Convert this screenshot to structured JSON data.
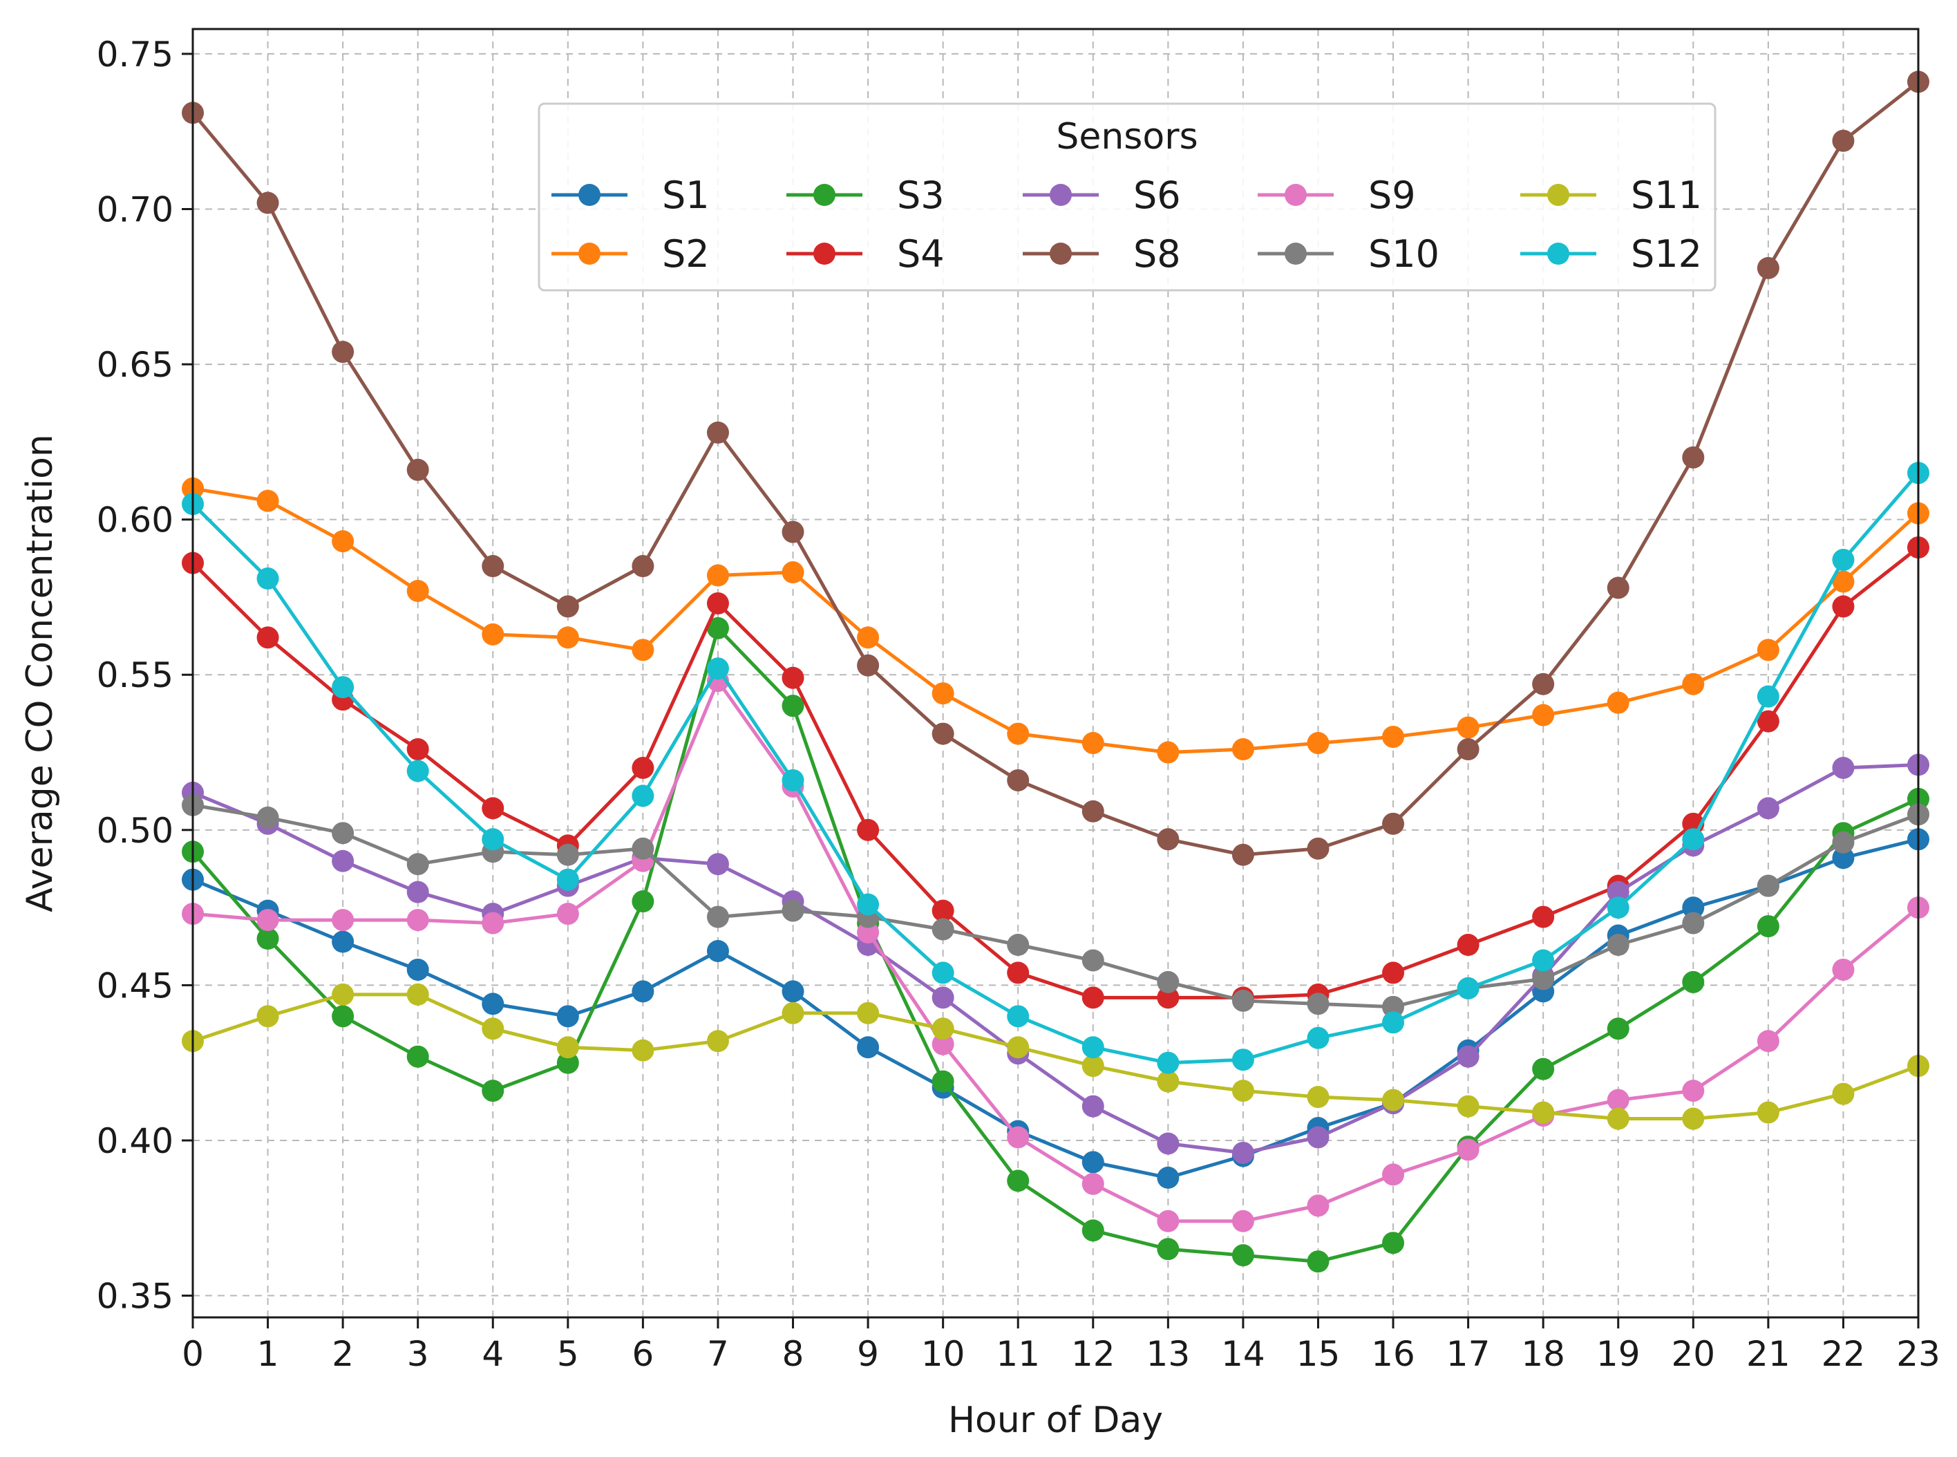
{
  "chart_data": {
    "type": "line",
    "title": "",
    "xlabel": "Hour of Day",
    "ylabel": "Average CO Concentration",
    "xlim": [
      0,
      23
    ],
    "ylim": [
      0.343,
      0.758
    ],
    "x": [
      0,
      1,
      2,
      3,
      4,
      5,
      6,
      7,
      8,
      9,
      10,
      11,
      12,
      13,
      14,
      15,
      16,
      17,
      18,
      19,
      20,
      21,
      22,
      23
    ],
    "x_tick_labels": [
      "0",
      "1",
      "2",
      "3",
      "4",
      "5",
      "6",
      "7",
      "8",
      "9",
      "10",
      "11",
      "12",
      "13",
      "14",
      "15",
      "16",
      "17",
      "18",
      "19",
      "20",
      "21",
      "22",
      "23"
    ],
    "y_ticks": [
      0.35,
      0.4,
      0.45,
      0.5,
      0.55,
      0.6,
      0.65,
      0.7,
      0.75
    ],
    "y_tick_labels": [
      "0.35",
      "0.40",
      "0.45",
      "0.50",
      "0.55",
      "0.60",
      "0.65",
      "0.70",
      "0.75"
    ],
    "grid": true,
    "legend": {
      "title": "Sensors",
      "placement": "top-center",
      "columns": 6
    },
    "series": [
      {
        "name": "S1",
        "color": "#1f77b4",
        "values": [
          0.484,
          0.474,
          0.464,
          0.455,
          0.444,
          0.44,
          0.448,
          0.461,
          0.448,
          0.43,
          0.417,
          0.403,
          0.393,
          0.388,
          0.395,
          0.404,
          0.412,
          0.429,
          0.448,
          0.466,
          0.475,
          0.482,
          0.491,
          0.497
        ]
      },
      {
        "name": "S2",
        "color": "#ff7f0e",
        "values": [
          0.61,
          0.606,
          0.593,
          0.577,
          0.563,
          0.562,
          0.558,
          0.582,
          0.583,
          0.562,
          0.544,
          0.531,
          0.528,
          0.525,
          0.526,
          0.528,
          0.53,
          0.533,
          0.537,
          0.541,
          0.547,
          0.558,
          0.58,
          0.602
        ]
      },
      {
        "name": "S3",
        "color": "#2ca02c",
        "values": [
          0.493,
          0.465,
          0.44,
          0.427,
          0.416,
          0.425,
          0.477,
          0.565,
          0.54,
          0.47,
          0.419,
          0.387,
          0.371,
          0.365,
          0.363,
          0.361,
          0.367,
          0.398,
          0.423,
          0.436,
          0.451,
          0.469,
          0.499,
          0.51
        ]
      },
      {
        "name": "S4",
        "color": "#d62728",
        "values": [
          0.586,
          0.562,
          0.542,
          0.526,
          0.507,
          0.495,
          0.52,
          0.573,
          0.549,
          0.5,
          0.474,
          0.454,
          0.446,
          0.446,
          0.446,
          0.447,
          0.454,
          0.463,
          0.472,
          0.482,
          0.502,
          0.535,
          0.572,
          0.591
        ]
      },
      {
        "name": "S6",
        "color": "#9467bd",
        "values": [
          0.512,
          0.502,
          0.49,
          0.48,
          0.473,
          0.482,
          0.491,
          0.489,
          0.477,
          0.463,
          0.446,
          0.428,
          0.411,
          0.399,
          0.396,
          0.401,
          0.412,
          0.427,
          0.453,
          0.48,
          0.495,
          0.507,
          0.52,
          0.521
        ]
      },
      {
        "name": "S8",
        "color": "#8c564b",
        "values": [
          0.731,
          0.702,
          0.654,
          0.616,
          0.585,
          0.572,
          0.585,
          0.628,
          0.596,
          0.553,
          0.531,
          0.516,
          0.506,
          0.497,
          0.492,
          0.494,
          0.502,
          0.526,
          0.547,
          0.578,
          0.62,
          0.681,
          0.722,
          0.741
        ]
      },
      {
        "name": "S9",
        "color": "#e377c2",
        "values": [
          0.473,
          0.471,
          0.471,
          0.471,
          0.47,
          0.473,
          0.49,
          0.548,
          0.514,
          0.467,
          0.431,
          0.401,
          0.386,
          0.374,
          0.374,
          0.379,
          0.389,
          0.397,
          0.408,
          0.413,
          0.416,
          0.432,
          0.455,
          0.475
        ]
      },
      {
        "name": "S10",
        "color": "#7f7f7f",
        "values": [
          0.508,
          0.504,
          0.499,
          0.489,
          0.493,
          0.492,
          0.494,
          0.472,
          0.474,
          0.472,
          0.468,
          0.463,
          0.458,
          0.451,
          0.445,
          0.444,
          0.443,
          0.449,
          0.452,
          0.463,
          0.47,
          0.482,
          0.496,
          0.505
        ]
      },
      {
        "name": "S11",
        "color": "#bcbd22",
        "values": [
          0.432,
          0.44,
          0.447,
          0.447,
          0.436,
          0.43,
          0.429,
          0.432,
          0.441,
          0.441,
          0.436,
          0.43,
          0.424,
          0.419,
          0.416,
          0.414,
          0.413,
          0.411,
          0.409,
          0.407,
          0.407,
          0.409,
          0.415,
          0.424
        ]
      },
      {
        "name": "S12",
        "color": "#17becf",
        "values": [
          0.605,
          0.581,
          0.546,
          0.519,
          0.497,
          0.484,
          0.511,
          0.552,
          0.516,
          0.476,
          0.454,
          0.44,
          0.43,
          0.425,
          0.426,
          0.433,
          0.438,
          0.449,
          0.458,
          0.475,
          0.497,
          0.543,
          0.587,
          0.615
        ]
      }
    ]
  }
}
